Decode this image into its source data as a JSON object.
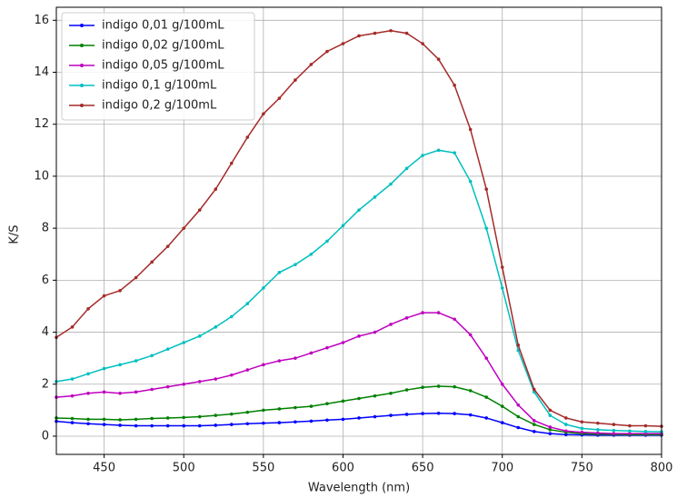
{
  "chart_data": {
    "type": "line",
    "xlabel": "Wavelength (nm)",
    "ylabel": "K/S",
    "x": [
      420,
      430,
      440,
      450,
      460,
      470,
      480,
      490,
      500,
      510,
      520,
      530,
      540,
      550,
      560,
      570,
      580,
      590,
      600,
      610,
      620,
      630,
      640,
      650,
      660,
      670,
      680,
      690,
      700,
      710,
      720,
      730,
      740,
      750,
      760,
      770,
      780,
      790,
      800
    ],
    "series": [
      {
        "name": "indigo 0,01 g/100mL",
        "color": "#0000ff",
        "values": [
          0.57,
          0.52,
          0.48,
          0.45,
          0.42,
          0.4,
          0.4,
          0.4,
          0.4,
          0.4,
          0.42,
          0.45,
          0.48,
          0.5,
          0.52,
          0.55,
          0.58,
          0.62,
          0.65,
          0.7,
          0.75,
          0.8,
          0.84,
          0.87,
          0.88,
          0.87,
          0.82,
          0.7,
          0.52,
          0.33,
          0.18,
          0.1,
          0.06,
          0.05,
          0.04,
          0.04,
          0.04,
          0.04,
          0.04
        ]
      },
      {
        "name": "indigo 0,02 g/100mL",
        "color": "#008000",
        "values": [
          0.7,
          0.68,
          0.65,
          0.65,
          0.63,
          0.65,
          0.68,
          0.7,
          0.72,
          0.75,
          0.8,
          0.85,
          0.92,
          1.0,
          1.05,
          1.1,
          1.15,
          1.25,
          1.35,
          1.45,
          1.55,
          1.65,
          1.78,
          1.88,
          1.92,
          1.9,
          1.75,
          1.5,
          1.15,
          0.75,
          0.45,
          0.25,
          0.15,
          0.1,
          0.08,
          0.07,
          0.06,
          0.06,
          0.06
        ]
      },
      {
        "name": "indigo 0,05 g/100mL",
        "color": "#bf00bf",
        "values": [
          1.5,
          1.55,
          1.65,
          1.7,
          1.65,
          1.7,
          1.8,
          1.9,
          2.0,
          2.1,
          2.2,
          2.35,
          2.55,
          2.75,
          2.9,
          3.0,
          3.2,
          3.4,
          3.6,
          3.85,
          4.0,
          4.3,
          4.55,
          4.75,
          4.75,
          4.5,
          3.9,
          3.0,
          2.0,
          1.2,
          0.6,
          0.35,
          0.2,
          0.15,
          0.12,
          0.1,
          0.1,
          0.1,
          0.1
        ]
      },
      {
        "name": "indigo 0,1 g/100mL",
        "color": "#00bfbf",
        "values": [
          2.1,
          2.2,
          2.4,
          2.6,
          2.75,
          2.9,
          3.1,
          3.35,
          3.6,
          3.85,
          4.2,
          4.6,
          5.1,
          5.7,
          6.3,
          6.6,
          7.0,
          7.5,
          8.1,
          8.7,
          9.2,
          9.7,
          10.3,
          10.8,
          11.0,
          10.9,
          9.8,
          8.0,
          5.7,
          3.3,
          1.7,
          0.8,
          0.45,
          0.3,
          0.25,
          0.22,
          0.2,
          0.18,
          0.17
        ]
      },
      {
        "name": "indigo 0,2 g/100mL",
        "color": "#a52a2a",
        "values": [
          3.8,
          4.2,
          4.9,
          5.4,
          5.6,
          6.1,
          6.7,
          7.3,
          8.0,
          8.7,
          9.5,
          10.5,
          11.5,
          12.4,
          13.0,
          13.7,
          14.3,
          14.8,
          15.1,
          15.4,
          15.5,
          15.6,
          15.5,
          15.1,
          14.5,
          13.5,
          11.8,
          9.5,
          6.5,
          3.5,
          1.8,
          1.0,
          0.7,
          0.55,
          0.5,
          0.45,
          0.4,
          0.4,
          0.38
        ]
      }
    ],
    "xlim": [
      420,
      800
    ],
    "xticks": [
      450,
      500,
      550,
      600,
      650,
      700,
      750,
      800
    ],
    "ylim": [
      -0.7,
      16.5
    ],
    "yticks": [
      0,
      2,
      4,
      6,
      8,
      10,
      12,
      14,
      16
    ],
    "grid": true,
    "legend": "upper left"
  }
}
